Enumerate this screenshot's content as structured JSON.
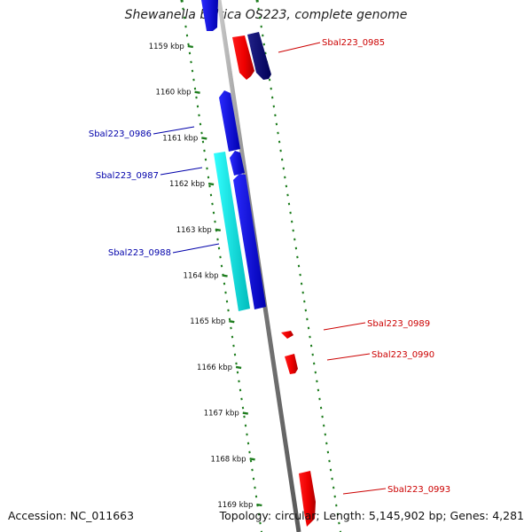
{
  "title": "Shewanella baltica OS223, complete genome",
  "accession_text": "Accession: NC_011663",
  "summary_text": "Topology: circular; Length: 5,145,902 bp; Genes: 4,281",
  "colors": {
    "ruler_green": "#1e7d1e",
    "backbone": "#8a8a8a",
    "forward_label": "#cc0000",
    "reverse_label": "#0000aa"
  },
  "ticks": [
    {
      "label": "1159 kbp"
    },
    {
      "label": "1160 kbp"
    },
    {
      "label": "1161 kbp"
    },
    {
      "label": "1162 kbp"
    },
    {
      "label": "1163 kbp"
    },
    {
      "label": "1164 kbp"
    },
    {
      "label": "1165 kbp"
    },
    {
      "label": "1166 kbp"
    },
    {
      "label": "1167 kbp"
    },
    {
      "label": "1168 kbp"
    },
    {
      "label": "1169 kbp"
    }
  ],
  "gene_labels": [
    {
      "name": "Sbal223_0985",
      "strand": "forward"
    },
    {
      "name": "Sbal223_0986",
      "strand": "reverse"
    },
    {
      "name": "Sbal223_0987",
      "strand": "reverse"
    },
    {
      "name": "Sbal223_0988",
      "strand": "reverse"
    },
    {
      "name": "Sbal223_0989",
      "strand": "forward"
    },
    {
      "name": "Sbal223_0990",
      "strand": "forward"
    },
    {
      "name": "Sbal223_0993",
      "strand": "forward"
    }
  ]
}
